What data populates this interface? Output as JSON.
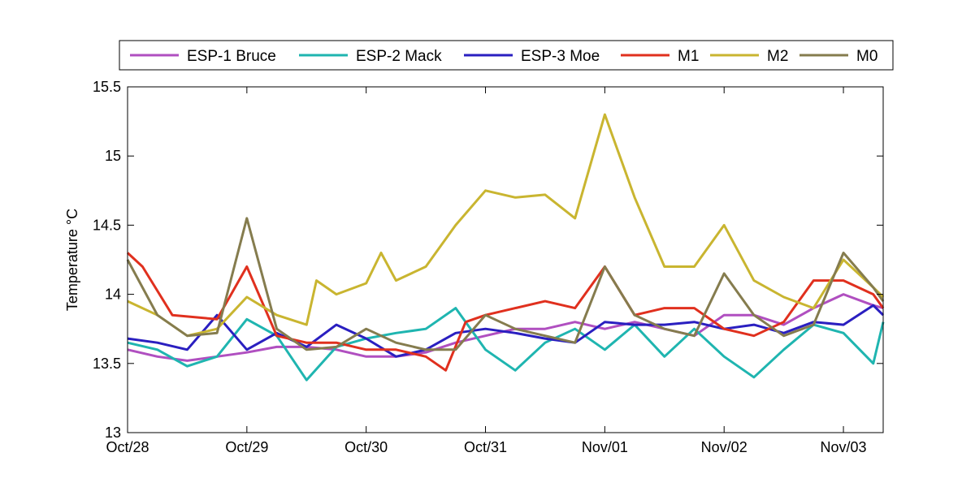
{
  "chart_data": {
    "type": "line",
    "title": "",
    "xlabel": "",
    "ylabel": "Temperature °C",
    "xlim": [
      "2012-10-28",
      "2012-11-03 08:00"
    ],
    "ylim": [
      13,
      15.5
    ],
    "x_tick_labels": [
      "Oct/28",
      "Oct/29",
      "Oct/30",
      "Oct/31",
      "Nov/01",
      "Nov/02",
      "Nov/03"
    ],
    "y_tick_labels": [
      "13",
      "13.5",
      "14",
      "14.5",
      "15",
      "15.5"
    ],
    "y_ticks": [
      13,
      13.5,
      14,
      14.5,
      15,
      15.5
    ],
    "legend_position": "top",
    "grid": false,
    "series": [
      {
        "name": "ESP-1 Bruce",
        "color": "#b04fc0",
        "x": [
          "2012-10-28 00:00",
          "2012-10-28 06:00",
          "2012-10-28 12:00",
          "2012-10-28 18:00",
          "2012-10-29 00:00",
          "2012-10-29 06:00",
          "2012-10-29 12:00",
          "2012-10-29 18:00",
          "2012-10-30 00:00",
          "2012-10-30 06:00",
          "2012-10-30 12:00",
          "2012-10-30 18:00",
          "2012-10-31 00:00",
          "2012-10-31 06:00",
          "2012-10-31 12:00",
          "2012-10-31 18:00",
          "2012-11-01 00:00",
          "2012-11-01 06:00",
          "2012-11-01 12:00",
          "2012-11-01 18:00",
          "2012-11-02 00:00",
          "2012-11-02 06:00",
          "2012-11-02 12:00",
          "2012-11-02 18:00",
          "2012-11-03 00:00",
          "2012-11-03 06:00",
          "2012-11-03 08:00"
        ],
        "values": [
          13.6,
          13.55,
          13.52,
          13.55,
          13.58,
          13.62,
          13.62,
          13.6,
          13.55,
          13.55,
          13.58,
          13.65,
          13.7,
          13.75,
          13.75,
          13.8,
          13.75,
          13.8,
          13.75,
          13.7,
          13.85,
          13.85,
          13.78,
          13.9,
          14.0,
          13.92,
          13.9
        ]
      },
      {
        "name": "ESP-2 Mack",
        "color": "#1fb5b0",
        "x": [
          "2012-10-28 00:00",
          "2012-10-28 06:00",
          "2012-10-28 12:00",
          "2012-10-28 18:00",
          "2012-10-29 00:00",
          "2012-10-29 06:00",
          "2012-10-29 12:00",
          "2012-10-29 18:00",
          "2012-10-30 00:00",
          "2012-10-30 06:00",
          "2012-10-30 12:00",
          "2012-10-30 18:00",
          "2012-10-31 00:00",
          "2012-10-31 06:00",
          "2012-10-31 12:00",
          "2012-10-31 18:00",
          "2012-11-01 00:00",
          "2012-11-01 06:00",
          "2012-11-01 12:00",
          "2012-11-01 18:00",
          "2012-11-02 00:00",
          "2012-11-02 06:00",
          "2012-11-02 12:00",
          "2012-11-02 18:00",
          "2012-11-03 00:00",
          "2012-11-03 06:00",
          "2012-11-03 08:00"
        ],
        "values": [
          13.65,
          13.6,
          13.48,
          13.55,
          13.82,
          13.7,
          13.38,
          13.62,
          13.68,
          13.72,
          13.75,
          13.9,
          13.6,
          13.45,
          13.65,
          13.75,
          13.6,
          13.78,
          13.55,
          13.75,
          13.55,
          13.4,
          13.6,
          13.78,
          13.72,
          13.5,
          13.8
        ]
      },
      {
        "name": "ESP-3 Moe",
        "color": "#2a1fc0",
        "x": [
          "2012-10-28 00:00",
          "2012-10-28 06:00",
          "2012-10-28 12:00",
          "2012-10-28 18:00",
          "2012-10-29 00:00",
          "2012-10-29 06:00",
          "2012-10-29 12:00",
          "2012-10-29 18:00",
          "2012-10-30 00:00",
          "2012-10-30 06:00",
          "2012-10-30 12:00",
          "2012-10-30 18:00",
          "2012-10-31 00:00",
          "2012-10-31 06:00",
          "2012-10-31 12:00",
          "2012-10-31 18:00",
          "2012-11-01 00:00",
          "2012-11-01 06:00",
          "2012-11-01 12:00",
          "2012-11-01 18:00",
          "2012-11-02 00:00",
          "2012-11-02 06:00",
          "2012-11-02 12:00",
          "2012-11-02 18:00",
          "2012-11-03 00:00",
          "2012-11-03 06:00",
          "2012-11-03 08:00"
        ],
        "values": [
          13.68,
          13.65,
          13.6,
          13.85,
          13.6,
          13.72,
          13.62,
          13.78,
          13.68,
          13.55,
          13.6,
          13.72,
          13.75,
          13.72,
          13.68,
          13.65,
          13.8,
          13.78,
          13.78,
          13.8,
          13.75,
          13.78,
          13.72,
          13.8,
          13.78,
          13.92,
          13.85
        ]
      },
      {
        "name": "M1",
        "color": "#e0301e",
        "x": [
          "2012-10-28 00:00",
          "2012-10-28 03:00",
          "2012-10-28 09:00",
          "2012-10-28 18:00",
          "2012-10-29 00:00",
          "2012-10-29 06:00",
          "2012-10-29 12:00",
          "2012-10-29 18:00",
          "2012-10-30 00:00",
          "2012-10-30 06:00",
          "2012-10-30 12:00",
          "2012-10-30 16:00",
          "2012-10-30 20:00",
          "2012-10-31 00:00",
          "2012-10-31 06:00",
          "2012-10-31 12:00",
          "2012-10-31 18:00",
          "2012-11-01 00:00",
          "2012-11-01 06:00",
          "2012-11-01 12:00",
          "2012-11-01 18:00",
          "2012-11-02 00:00",
          "2012-11-02 06:00",
          "2012-11-02 12:00",
          "2012-11-02 18:00",
          "2012-11-03 00:00",
          "2012-11-03 06:00",
          "2012-11-03 08:00"
        ],
        "values": [
          14.3,
          14.2,
          13.85,
          13.82,
          14.2,
          13.7,
          13.65,
          13.65,
          13.6,
          13.6,
          13.55,
          13.45,
          13.8,
          13.85,
          13.9,
          13.95,
          13.9,
          14.2,
          13.85,
          13.9,
          13.9,
          13.75,
          13.7,
          13.8,
          14.1,
          14.1,
          14.0,
          13.9
        ]
      },
      {
        "name": "M2",
        "color": "#c9b530",
        "x": [
          "2012-10-28 00:00",
          "2012-10-28 06:00",
          "2012-10-28 12:00",
          "2012-10-28 18:00",
          "2012-10-29 00:00",
          "2012-10-29 06:00",
          "2012-10-29 12:00",
          "2012-10-29 14:00",
          "2012-10-29 18:00",
          "2012-10-30 00:00",
          "2012-10-30 03:00",
          "2012-10-30 06:00",
          "2012-10-30 12:00",
          "2012-10-30 18:00",
          "2012-10-31 00:00",
          "2012-10-31 06:00",
          "2012-10-31 12:00",
          "2012-10-31 18:00",
          "2012-11-01 00:00",
          "2012-11-01 06:00",
          "2012-11-01 12:00",
          "2012-11-01 18:00",
          "2012-11-02 00:00",
          "2012-11-02 06:00",
          "2012-11-02 12:00",
          "2012-11-02 18:00",
          "2012-11-03 00:00",
          "2012-11-03 06:00",
          "2012-11-03 08:00"
        ],
        "values": [
          13.95,
          13.85,
          13.7,
          13.75,
          13.98,
          13.85,
          13.78,
          14.1,
          14.0,
          14.08,
          14.3,
          14.1,
          14.2,
          14.5,
          14.75,
          14.7,
          14.72,
          14.55,
          15.3,
          14.7,
          14.2,
          14.2,
          14.5,
          14.1,
          13.98,
          13.9,
          14.25,
          14.05,
          13.98
        ]
      },
      {
        "name": "M0",
        "color": "#857c4e",
        "x": [
          "2012-10-28 00:00",
          "2012-10-28 06:00",
          "2012-10-28 12:00",
          "2012-10-28 18:00",
          "2012-10-29 00:00",
          "2012-10-29 06:00",
          "2012-10-29 12:00",
          "2012-10-29 18:00",
          "2012-10-30 00:00",
          "2012-10-30 06:00",
          "2012-10-30 12:00",
          "2012-10-30 18:00",
          "2012-10-31 00:00",
          "2012-10-31 06:00",
          "2012-10-31 12:00",
          "2012-10-31 18:00",
          "2012-11-01 00:00",
          "2012-11-01 06:00",
          "2012-11-01 12:00",
          "2012-11-01 18:00",
          "2012-11-02 00:00",
          "2012-11-02 06:00",
          "2012-11-02 12:00",
          "2012-11-02 18:00",
          "2012-11-03 00:00",
          "2012-11-03 06:00",
          "2012-11-03 08:00"
        ],
        "values": [
          14.25,
          13.85,
          13.7,
          13.72,
          14.55,
          13.75,
          13.6,
          13.62,
          13.75,
          13.65,
          13.6,
          13.6,
          13.85,
          13.75,
          13.7,
          13.65,
          14.2,
          13.85,
          13.75,
          13.7,
          14.15,
          13.85,
          13.7,
          13.78,
          14.3,
          14.05,
          13.95
        ]
      }
    ]
  }
}
